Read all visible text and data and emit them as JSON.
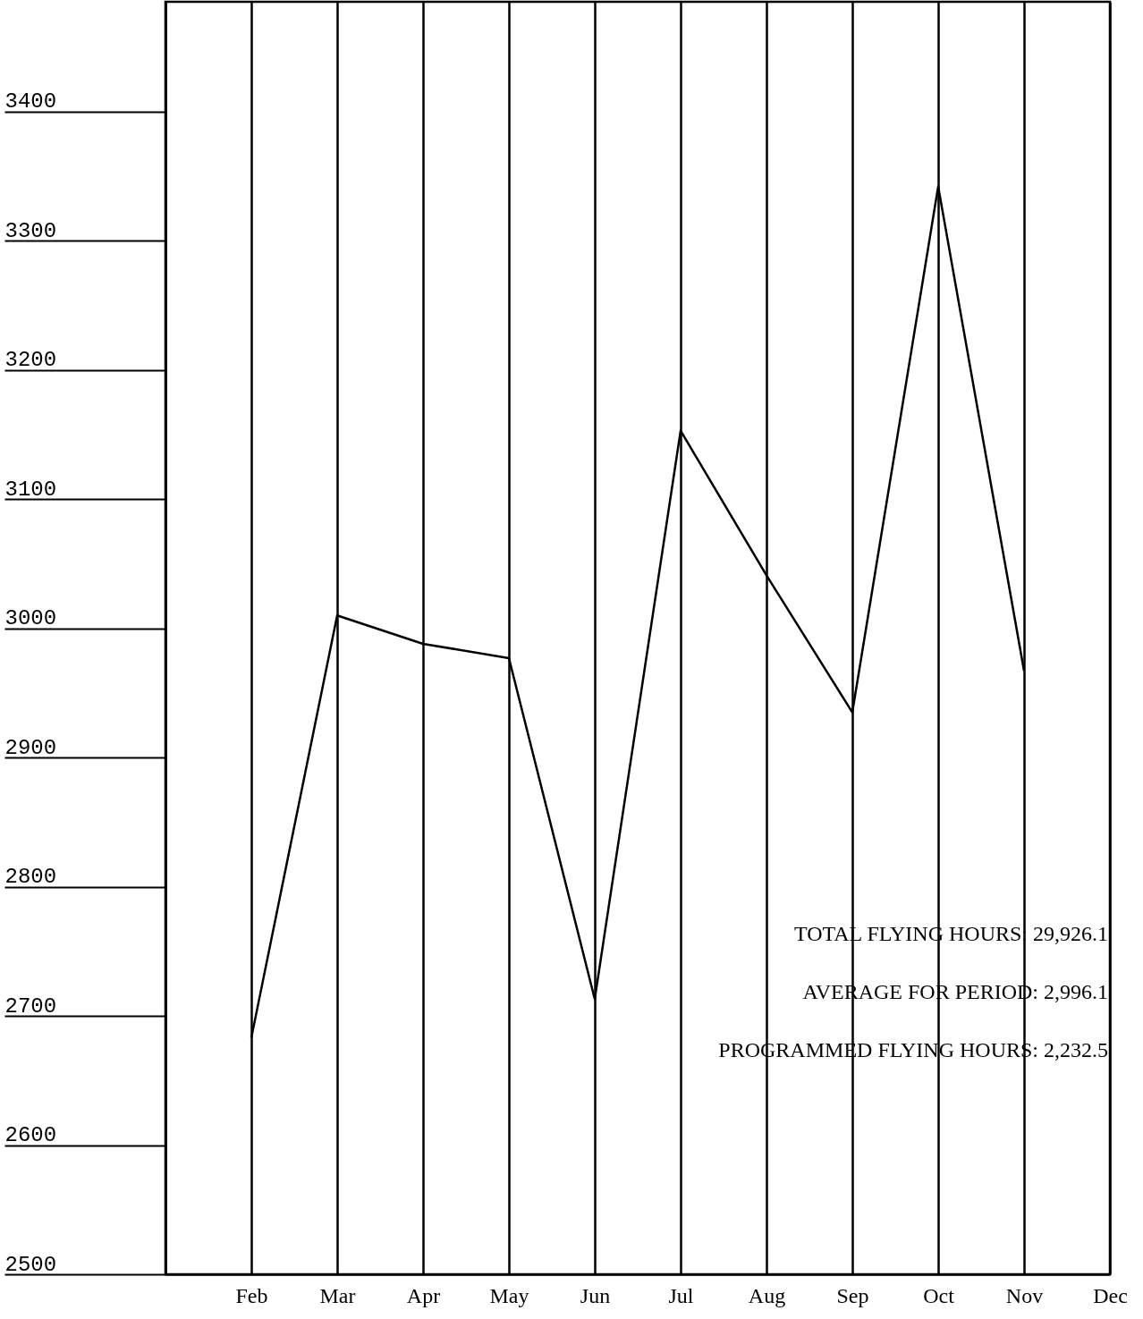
{
  "chart_data": {
    "type": "line",
    "categories": [
      null,
      "Feb",
      "Mar",
      "Apr",
      "May",
      "Jun",
      "Jul",
      "Aug",
      "Sep",
      "Oct",
      "Nov",
      "Dec"
    ],
    "values": [
      null,
      2683,
      3010,
      2988,
      2977,
      2713,
      3153,
      3041,
      2935,
      3342,
      2967,
      null
    ],
    "color": "#000000",
    "ylim": [
      2500,
      3485
    ],
    "yticks": [
      2500,
      2600,
      2700,
      2800,
      2900,
      3000,
      3100,
      3200,
      3300,
      3400
    ],
    "grid": "x",
    "annotations": [
      "TOTAL FLYING HOURS:  29,926.1",
      "AVERAGE FOR PERIOD:    2,996.1",
      "PROGRAMMED FLYING HOURS:  2,232.5"
    ]
  }
}
